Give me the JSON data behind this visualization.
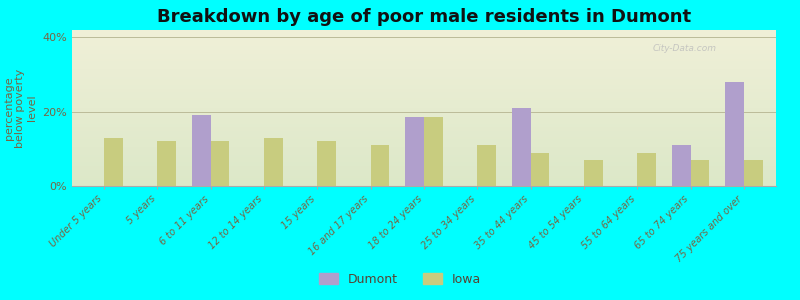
{
  "title": "Breakdown by age of poor male residents in Dumont",
  "ylabel": "percentage\nbelow poverty\nlevel",
  "categories": [
    "Under 5 years",
    "5 years",
    "6 to 11 years",
    "12 to 14 years",
    "15 years",
    "16 and 17 years",
    "18 to 24 years",
    "25 to 34 years",
    "35 to 44 years",
    "45 to 54 years",
    "55 to 64 years",
    "65 to 74 years",
    "75 years and over"
  ],
  "dumont": [
    0,
    0,
    19.0,
    0,
    0,
    0,
    18.5,
    0,
    21.0,
    0,
    0,
    11.0,
    28.0
  ],
  "iowa": [
    13.0,
    12.0,
    12.0,
    13.0,
    12.0,
    11.0,
    18.5,
    11.0,
    9.0,
    7.0,
    9.0,
    7.0,
    7.0
  ],
  "dumont_color": "#b09fcc",
  "iowa_color": "#c8cc7f",
  "bg_top": "#f0f0d8",
  "bg_bottom": "#dce8c8",
  "outer_bg": "#00ffff",
  "ylim": [
    0,
    42
  ],
  "yticks": [
    0,
    20,
    40
  ],
  "ytick_labels": [
    "0%",
    "20%",
    "40%"
  ],
  "bar_width": 0.35,
  "title_fontsize": 13,
  "label_fontsize": 7,
  "ylabel_fontsize": 8
}
